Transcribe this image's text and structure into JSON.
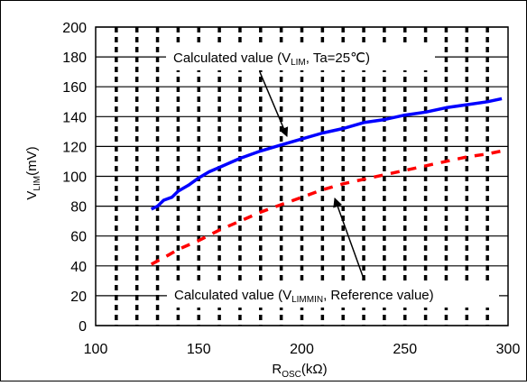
{
  "chart_data": {
    "type": "line",
    "xlabel": {
      "main": "R",
      "sub": "OSC",
      "unit": "(kΩ)"
    },
    "ylabel": {
      "main": "V",
      "sub": "LIM",
      "unit": "(mV)"
    },
    "xlim": [
      100,
      300
    ],
    "ylim": [
      0,
      200
    ],
    "x_ticks": [
      100,
      150,
      200,
      250,
      300
    ],
    "y_ticks": [
      0,
      20,
      40,
      60,
      80,
      100,
      120,
      140,
      160,
      180,
      200
    ],
    "dashed_vertical_gridlines_at": [
      110,
      120,
      130,
      140,
      150,
      160,
      170,
      180,
      190,
      200,
      210,
      220,
      230,
      240,
      250,
      260,
      270,
      280,
      290
    ],
    "grid": true,
    "series": [
      {
        "name": "Calculated value (VLIM, Ta=25℃)",
        "color": "#0000ff",
        "line_style": "solid",
        "x": [
          127,
          130,
          133,
          137,
          140,
          145,
          150,
          155,
          160,
          170,
          180,
          190,
          200,
          210,
          220,
          230,
          240,
          250,
          260,
          270,
          280,
          290,
          297
        ],
        "y": [
          78,
          80,
          84,
          86,
          90,
          94,
          99,
          103,
          106,
          112,
          117,
          121,
          125,
          129,
          132,
          136,
          138,
          141,
          143,
          146,
          148,
          150,
          152
        ]
      },
      {
        "name": "Calculated value (VLIMMIN, Reference value)",
        "color": "#ff0000",
        "line_style": "dashed",
        "x": [
          127,
          135,
          140,
          150,
          160,
          170,
          180,
          190,
          200,
          210,
          220,
          230,
          240,
          250,
          260,
          270,
          280,
          290,
          297
        ],
        "y": [
          41,
          47,
          51,
          57,
          64,
          70,
          76,
          81,
          86,
          91,
          95,
          98,
          101,
          104,
          107,
          110,
          113,
          115,
          117
        ]
      }
    ],
    "annotations": [
      {
        "prefix": "Calculated value (V",
        "sub": "LIM",
        "suffix": ", Ta=25℃)",
        "points_to": "blue series"
      },
      {
        "prefix": "Calculated value (V",
        "sub": "LIMMIN",
        "suffix": ", Reference value)",
        "points_to": "red series"
      }
    ]
  }
}
